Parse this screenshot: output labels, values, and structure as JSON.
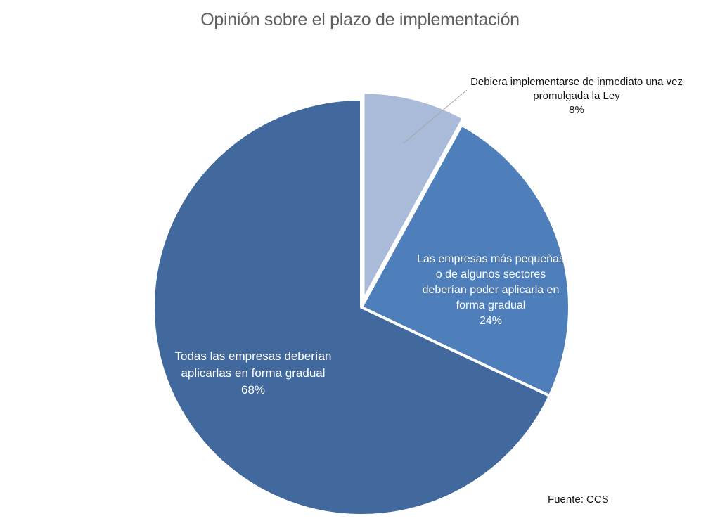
{
  "chart_data": {
    "type": "pie",
    "title": "Opinión sobre el plazo de implementación",
    "slices": [
      {
        "label": "Debiera implementarse de inmediato una vez promulgada la Ley",
        "label_lines": [
          "Debiera implementarse de inmediato una vez",
          "promulgada la Ley"
        ],
        "value": 8,
        "value_label": "8%",
        "color": "#a9bbd8",
        "exploded": true
      },
      {
        "label": "Las empresas más pequeñas o de algunos sectores deberían poder aplicarla en forma gradual",
        "label_lines": [
          "Las empresas más pequeñas",
          "o de algunos sectores",
          "deberían poder aplicarla en",
          "forma gradual"
        ],
        "value": 24,
        "value_label": "24%",
        "color": "#4e7fbb"
      },
      {
        "label": "Todas las empresas deberían aplicarlas en forma gradual",
        "label_lines": [
          "Todas las empresas deberían",
          "aplicarlas en forma gradual"
        ],
        "value": 68,
        "value_label": "68%",
        "color": "#41699d"
      }
    ],
    "source": "Fuente: CCS"
  }
}
